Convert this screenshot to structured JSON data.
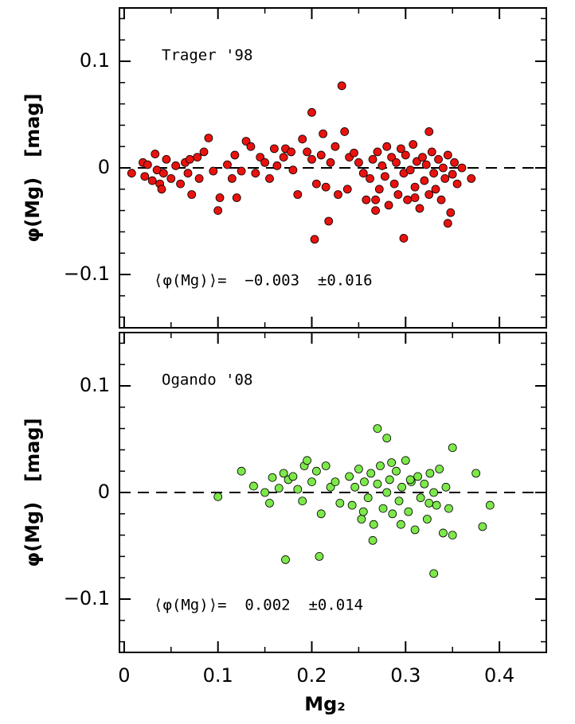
{
  "chart_data": [
    {
      "type": "scatter",
      "annotation": "Trager '98",
      "stat_label": "⟨φ(Mg)⟩=  −0.003  ±0.016",
      "ylabel": "φ(Mg)   [mag]",
      "color": "#e8120f",
      "hline": 0,
      "xlim": [
        -0.005,
        0.45
      ],
      "xticks": [
        0,
        0.1,
        0.2,
        0.3,
        0.4
      ],
      "xminorticks": [
        0.05,
        0.15,
        0.25,
        0.35
      ],
      "ylim": [
        -0.15,
        0.15
      ],
      "yticks": [
        {
          "value": -0.1,
          "label": "−0.1"
        },
        0,
        0.1
      ],
      "yminorticks": [
        -0.14,
        -0.12,
        -0.08,
        -0.06,
        -0.04,
        -0.02,
        0.02,
        0.04,
        0.06,
        0.08,
        0.12,
        0.14
      ],
      "x": [
        0.008,
        0.02,
        0.022,
        0.025,
        0.03,
        0.033,
        0.035,
        0.038,
        0.04,
        0.042,
        0.045,
        0.05,
        0.055,
        0.06,
        0.065,
        0.068,
        0.07,
        0.072,
        0.078,
        0.08,
        0.085,
        0.09,
        0.095,
        0.1,
        0.102,
        0.11,
        0.115,
        0.118,
        0.12,
        0.125,
        0.13,
        0.135,
        0.14,
        0.145,
        0.15,
        0.155,
        0.16,
        0.163,
        0.17,
        0.172,
        0.178,
        0.18,
        0.185,
        0.19,
        0.195,
        0.2,
        0.2,
        0.203,
        0.205,
        0.21,
        0.212,
        0.215,
        0.218,
        0.22,
        0.225,
        0.228,
        0.232,
        0.235,
        0.238,
        0.24,
        0.245,
        0.25,
        0.255,
        0.258,
        0.262,
        0.265,
        0.268,
        0.27,
        0.272,
        0.275,
        0.278,
        0.28,
        0.282,
        0.285,
        0.288,
        0.29,
        0.292,
        0.295,
        0.298,
        0.3,
        0.302,
        0.305,
        0.308,
        0.31,
        0.312,
        0.315,
        0.318,
        0.32,
        0.322,
        0.325,
        0.328,
        0.33,
        0.332,
        0.335,
        0.338,
        0.34,
        0.342,
        0.345,
        0.348,
        0.35,
        0.352,
        0.355,
        0.268,
        0.31,
        0.298,
        0.325,
        0.345,
        0.36,
        0.37
      ],
      "values": [
        -0.005,
        0.005,
        -0.008,
        0.003,
        -0.012,
        0.013,
        -0.002,
        -0.015,
        -0.02,
        -0.005,
        0.008,
        -0.01,
        0.002,
        -0.015,
        0.005,
        -0.005,
        0.008,
        -0.025,
        0.01,
        -0.01,
        0.015,
        0.028,
        -0.003,
        -0.04,
        -0.028,
        0.003,
        -0.01,
        0.012,
        -0.028,
        -0.003,
        0.025,
        0.02,
        -0.005,
        0.01,
        0.005,
        -0.01,
        0.018,
        0.002,
        0.01,
        0.018,
        0.015,
        -0.002,
        -0.025,
        0.027,
        0.015,
        0.052,
        0.008,
        -0.067,
        -0.015,
        0.012,
        0.032,
        -0.018,
        -0.05,
        0.005,
        0.02,
        -0.025,
        0.077,
        0.034,
        -0.02,
        0.01,
        0.014,
        0.005,
        -0.005,
        -0.03,
        -0.01,
        0.008,
        -0.03,
        0.015,
        -0.02,
        0.002,
        -0.008,
        0.02,
        -0.035,
        0.01,
        -0.015,
        0.005,
        -0.025,
        0.018,
        -0.005,
        0.012,
        -0.03,
        -0.002,
        0.022,
        -0.018,
        0.006,
        -0.038,
        0.01,
        -0.012,
        0.003,
        -0.025,
        0.015,
        -0.005,
        -0.02,
        0.008,
        -0.03,
        0.0,
        -0.01,
        0.012,
        -0.042,
        -0.006,
        0.005,
        -0.015,
        -0.04,
        -0.028,
        -0.066,
        0.034,
        -0.052,
        0.0,
        -0.01
      ]
    },
    {
      "type": "scatter",
      "annotation": "Ogando '08",
      "stat_label": "⟨φ(Mg)⟩=  0.002  ±0.014",
      "ylabel": "φ(Mg)   [mag]",
      "xlabel": "Mg₂",
      "color": "#7de84a",
      "hline": 0,
      "xlim": [
        -0.005,
        0.45
      ],
      "xticks": [
        0,
        0.1,
        0.2,
        0.3,
        0.4
      ],
      "xminorticks": [
        0.05,
        0.15,
        0.25,
        0.35
      ],
      "ylim": [
        -0.15,
        0.15
      ],
      "yticks": [
        {
          "value": -0.1,
          "label": "−0.1"
        },
        0,
        0.1
      ],
      "yminorticks": [
        -0.14,
        -0.12,
        -0.08,
        -0.06,
        -0.04,
        -0.02,
        0.02,
        0.04,
        0.06,
        0.08,
        0.12,
        0.14
      ],
      "x": [
        0.1,
        0.125,
        0.138,
        0.15,
        0.155,
        0.158,
        0.165,
        0.17,
        0.172,
        0.175,
        0.18,
        0.185,
        0.19,
        0.192,
        0.195,
        0.2,
        0.205,
        0.208,
        0.21,
        0.215,
        0.22,
        0.225,
        0.23,
        0.24,
        0.243,
        0.246,
        0.25,
        0.253,
        0.256,
        0.26,
        0.263,
        0.266,
        0.27,
        0.273,
        0.276,
        0.28,
        0.283,
        0.286,
        0.29,
        0.293,
        0.296,
        0.3,
        0.303,
        0.306,
        0.31,
        0.313,
        0.316,
        0.32,
        0.323,
        0.326,
        0.33,
        0.333,
        0.336,
        0.34,
        0.343,
        0.346,
        0.35,
        0.255,
        0.285,
        0.305,
        0.265,
        0.295,
        0.325,
        0.27,
        0.28,
        0.33,
        0.35,
        0.375,
        0.382,
        0.39
      ],
      "values": [
        -0.004,
        0.02,
        0.006,
        0.0,
        -0.01,
        0.014,
        0.004,
        0.018,
        -0.063,
        0.012,
        0.015,
        0.003,
        -0.008,
        0.025,
        0.03,
        0.01,
        0.02,
        -0.06,
        -0.02,
        0.025,
        0.005,
        0.01,
        -0.01,
        0.015,
        -0.012,
        0.005,
        0.022,
        -0.025,
        0.01,
        -0.005,
        0.018,
        -0.03,
        0.008,
        0.025,
        -0.015,
        0.0,
        0.012,
        -0.02,
        0.02,
        -0.008,
        0.005,
        0.03,
        -0.018,
        0.01,
        -0.035,
        0.015,
        -0.005,
        0.008,
        -0.025,
        0.018,
        0.0,
        -0.012,
        0.022,
        -0.038,
        0.005,
        -0.015,
        -0.04,
        -0.018,
        0.028,
        0.012,
        -0.045,
        -0.03,
        -0.01,
        0.06,
        0.051,
        -0.076,
        0.042,
        0.018,
        -0.032,
        -0.012
      ]
    }
  ]
}
